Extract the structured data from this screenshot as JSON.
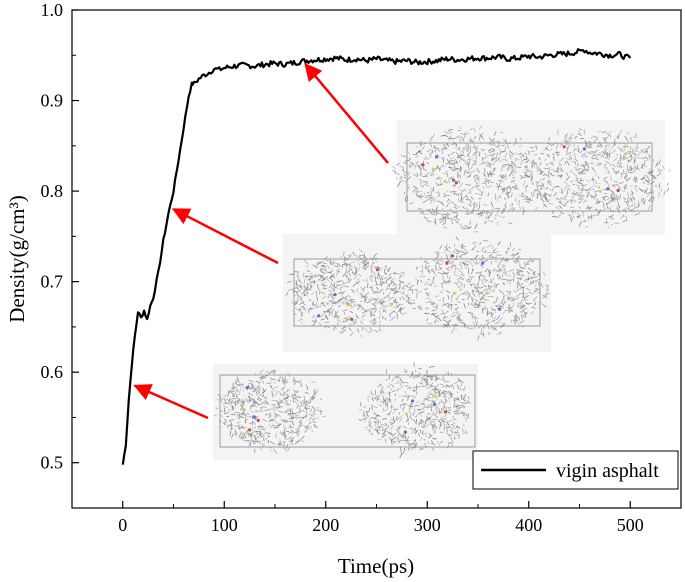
{
  "chart_data": {
    "type": "line",
    "title": "",
    "xlabel": "Time(ps)",
    "ylabel": "Density(g/cm³)",
    "xlim": [
      -50,
      550
    ],
    "ylim": [
      0.45,
      1.0
    ],
    "xticks": [
      0,
      100,
      200,
      300,
      400,
      500
    ],
    "xtick_labels": [
      "0",
      "100",
      "200",
      "300",
      "400",
      "500"
    ],
    "yticks": [
      0.5,
      0.6,
      0.7,
      0.8,
      0.9,
      1.0
    ],
    "ytick_labels": [
      "0.5",
      "0.6",
      "0.7",
      "0.8",
      "0.9",
      "1.0"
    ],
    "legend": {
      "label": "vigin asphalt",
      "placement": "bottom-right"
    },
    "series": [
      {
        "name": "vigin asphalt",
        "color": "#000000",
        "x": [
          0,
          3,
          6,
          9,
          12,
          15,
          18,
          21,
          24,
          27,
          30,
          35,
          40,
          45,
          50,
          55,
          60,
          65,
          68,
          70,
          75,
          80,
          85,
          90,
          95,
          100,
          110,
          120,
          130,
          140,
          150,
          160,
          170,
          180,
          190,
          200,
          210,
          220,
          230,
          240,
          250,
          260,
          270,
          280,
          290,
          300,
          310,
          320,
          330,
          340,
          350,
          360,
          370,
          380,
          390,
          400,
          410,
          420,
          430,
          440,
          450,
          455,
          460,
          470,
          480,
          490,
          495,
          500
        ],
        "y": [
          0.498,
          0.52,
          0.57,
          0.61,
          0.64,
          0.667,
          0.66,
          0.668,
          0.658,
          0.673,
          0.682,
          0.71,
          0.745,
          0.775,
          0.8,
          0.835,
          0.87,
          0.905,
          0.918,
          0.919,
          0.924,
          0.928,
          0.931,
          0.935,
          0.934,
          0.936,
          0.938,
          0.939,
          0.938,
          0.94,
          0.941,
          0.94,
          0.942,
          0.944,
          0.945,
          0.946,
          0.947,
          0.945,
          0.946,
          0.944,
          0.946,
          0.944,
          0.943,
          0.944,
          0.942,
          0.943,
          0.944,
          0.946,
          0.945,
          0.946,
          0.947,
          0.947,
          0.948,
          0.946,
          0.947,
          0.949,
          0.948,
          0.95,
          0.951,
          0.952,
          0.954,
          0.956,
          0.953,
          0.952,
          0.95,
          0.951,
          0.948,
          0.947
        ]
      }
    ],
    "annotations": [
      {
        "type": "arrow",
        "color": "#ff0000",
        "points_to": {
          "x": 12,
          "y": 0.585
        },
        "from_inset": "initial-state"
      },
      {
        "type": "arrow",
        "color": "#ff0000",
        "points_to": {
          "x": 50,
          "y": 0.78
        },
        "from_inset": "compressing-state"
      },
      {
        "type": "arrow",
        "color": "#ff0000",
        "points_to": {
          "x": 180,
          "y": 0.94
        },
        "from_inset": "equilibrium-state"
      }
    ],
    "insets": [
      {
        "id": "initial-state",
        "depicts": "two separated molecular clusters in a simulation box"
      },
      {
        "id": "compressing-state",
        "depicts": "two molecular clusters moving together"
      },
      {
        "id": "equilibrium-state",
        "depicts": "single merged molecular cluster"
      }
    ]
  }
}
